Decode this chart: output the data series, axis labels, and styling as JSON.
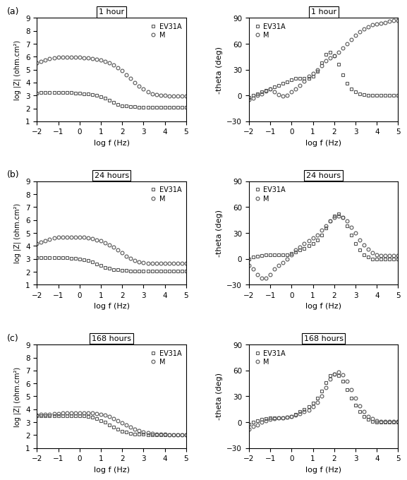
{
  "panels": [
    {
      "label": "1 hour",
      "row_label": "(a)",
      "bode_mag": {
        "EV31A": {
          "x": [
            -2.0,
            -1.8,
            -1.6,
            -1.4,
            -1.2,
            -1.0,
            -0.8,
            -0.6,
            -0.4,
            -0.2,
            0.0,
            0.2,
            0.4,
            0.6,
            0.8,
            1.0,
            1.2,
            1.4,
            1.6,
            1.8,
            2.0,
            2.2,
            2.4,
            2.6,
            2.8,
            3.0,
            3.2,
            3.4,
            3.6,
            3.8,
            4.0,
            4.2,
            4.4,
            4.6,
            4.8,
            5.0
          ],
          "y": [
            3.2,
            3.22,
            3.22,
            3.22,
            3.22,
            3.22,
            3.22,
            3.22,
            3.22,
            3.2,
            3.18,
            3.15,
            3.12,
            3.08,
            3.02,
            2.92,
            2.78,
            2.62,
            2.45,
            2.32,
            2.22,
            2.18,
            2.15,
            2.12,
            2.1,
            2.1,
            2.1,
            2.1,
            2.1,
            2.1,
            2.1,
            2.1,
            2.1,
            2.1,
            2.1,
            2.1
          ]
        },
        "M": {
          "x": [
            -2.0,
            -1.8,
            -1.6,
            -1.4,
            -1.2,
            -1.0,
            -0.8,
            -0.6,
            -0.4,
            -0.2,
            0.0,
            0.2,
            0.4,
            0.6,
            0.8,
            1.0,
            1.2,
            1.4,
            1.6,
            1.8,
            2.0,
            2.2,
            2.4,
            2.6,
            2.8,
            3.0,
            3.2,
            3.4,
            3.6,
            3.8,
            4.0,
            4.2,
            4.4,
            4.6,
            4.8,
            5.0
          ],
          "y": [
            5.55,
            5.65,
            5.75,
            5.85,
            5.92,
            5.95,
            5.97,
            5.97,
            5.97,
            5.97,
            5.95,
            5.93,
            5.9,
            5.87,
            5.82,
            5.75,
            5.65,
            5.52,
            5.35,
            5.15,
            4.9,
            4.6,
            4.3,
            4.0,
            3.72,
            3.48,
            3.28,
            3.15,
            3.06,
            3.02,
            3.0,
            2.98,
            2.97,
            2.97,
            2.97,
            2.97
          ]
        }
      },
      "bode_phase": {
        "EV31A": {
          "x": [
            -2.0,
            -1.8,
            -1.6,
            -1.4,
            -1.2,
            -1.0,
            -0.8,
            -0.6,
            -0.4,
            -0.2,
            0.0,
            0.2,
            0.4,
            0.6,
            0.8,
            1.0,
            1.2,
            1.4,
            1.6,
            1.8,
            2.0,
            2.2,
            2.4,
            2.6,
            2.8,
            3.0,
            3.2,
            3.4,
            3.6,
            3.8,
            4.0,
            4.2,
            4.4,
            4.6,
            4.8,
            5.0
          ],
          "y": [
            -2,
            0,
            2,
            4,
            6,
            8,
            10,
            12,
            14,
            16,
            18,
            20,
            20,
            20,
            20,
            22,
            28,
            38,
            48,
            50,
            46,
            36,
            24,
            14,
            8,
            4,
            2,
            1,
            0,
            0,
            0,
            0,
            0,
            0,
            0,
            0
          ]
        },
        "M": {
          "x": [
            -2.0,
            -1.8,
            -1.6,
            -1.4,
            -1.2,
            -1.0,
            -0.8,
            -0.6,
            -0.4,
            -0.2,
            0.0,
            0.2,
            0.4,
            0.6,
            0.8,
            1.0,
            1.2,
            1.4,
            1.6,
            1.8,
            2.0,
            2.2,
            2.4,
            2.6,
            2.8,
            3.0,
            3.2,
            3.4,
            3.6,
            3.8,
            4.0,
            4.2,
            4.4,
            4.6,
            4.8,
            5.0
          ],
          "y": [
            -5,
            -3,
            0,
            2,
            5,
            8,
            4,
            1,
            -1,
            0,
            4,
            8,
            12,
            17,
            22,
            26,
            30,
            35,
            40,
            44,
            46,
            50,
            55,
            60,
            65,
            70,
            74,
            77,
            80,
            82,
            83,
            84,
            85,
            86,
            87,
            87
          ]
        }
      }
    },
    {
      "label": "24 hours",
      "row_label": "(b)",
      "bode_mag": {
        "EV31A": {
          "x": [
            -2.0,
            -1.8,
            -1.6,
            -1.4,
            -1.2,
            -1.0,
            -0.8,
            -0.6,
            -0.4,
            -0.2,
            0.0,
            0.2,
            0.4,
            0.6,
            0.8,
            1.0,
            1.2,
            1.4,
            1.6,
            1.8,
            2.0,
            2.2,
            2.4,
            2.6,
            2.8,
            3.0,
            3.2,
            3.4,
            3.6,
            3.8,
            4.0,
            4.2,
            4.4,
            4.6,
            4.8,
            5.0
          ],
          "y": [
            3.1,
            3.1,
            3.1,
            3.1,
            3.1,
            3.1,
            3.1,
            3.08,
            3.05,
            3.02,
            2.98,
            2.92,
            2.85,
            2.75,
            2.62,
            2.48,
            2.35,
            2.25,
            2.18,
            2.15,
            2.12,
            2.1,
            2.08,
            2.07,
            2.07,
            2.07,
            2.07,
            2.07,
            2.07,
            2.07,
            2.07,
            2.07,
            2.07,
            2.07,
            2.07,
            2.07
          ]
        },
        "M": {
          "x": [
            -2.0,
            -1.8,
            -1.6,
            -1.4,
            -1.2,
            -1.0,
            -0.8,
            -0.6,
            -0.4,
            -0.2,
            0.0,
            0.2,
            0.4,
            0.6,
            0.8,
            1.0,
            1.2,
            1.4,
            1.6,
            1.8,
            2.0,
            2.2,
            2.4,
            2.6,
            2.8,
            3.0,
            3.2,
            3.4,
            3.6,
            3.8,
            4.0,
            4.2,
            4.4,
            4.6,
            4.8,
            5.0
          ],
          "y": [
            4.2,
            4.3,
            4.4,
            4.5,
            4.6,
            4.65,
            4.68,
            4.7,
            4.7,
            4.7,
            4.68,
            4.65,
            4.6,
            4.55,
            4.48,
            4.38,
            4.25,
            4.1,
            3.9,
            3.68,
            3.45,
            3.22,
            3.02,
            2.88,
            2.78,
            2.72,
            2.68,
            2.65,
            2.63,
            2.63,
            2.63,
            2.63,
            2.63,
            2.63,
            2.63,
            2.63
          ]
        }
      },
      "bode_phase": {
        "EV31A": {
          "x": [
            -2.0,
            -1.8,
            -1.6,
            -1.4,
            -1.2,
            -1.0,
            -0.8,
            -0.6,
            -0.4,
            -0.2,
            0.0,
            0.2,
            0.4,
            0.6,
            0.8,
            1.0,
            1.2,
            1.4,
            1.6,
            1.8,
            2.0,
            2.2,
            2.4,
            2.6,
            2.8,
            3.0,
            3.2,
            3.4,
            3.6,
            3.8,
            4.0,
            4.2,
            4.4,
            4.6,
            4.8,
            5.0
          ],
          "y": [
            0,
            2,
            3,
            4,
            5,
            5,
            5,
            5,
            5,
            5,
            6,
            8,
            10,
            12,
            15,
            18,
            22,
            28,
            36,
            44,
            50,
            52,
            48,
            38,
            28,
            18,
            10,
            5,
            2,
            0,
            0,
            0,
            0,
            0,
            0,
            0
          ]
        },
        "M": {
          "x": [
            -2.0,
            -1.8,
            -1.6,
            -1.4,
            -1.2,
            -1.0,
            -0.8,
            -0.6,
            -0.4,
            -0.2,
            0.0,
            0.2,
            0.4,
            0.6,
            0.8,
            1.0,
            1.2,
            1.4,
            1.6,
            1.8,
            2.0,
            2.2,
            2.4,
            2.6,
            2.8,
            3.0,
            3.2,
            3.4,
            3.6,
            3.8,
            4.0,
            4.2,
            4.4,
            4.6,
            4.8,
            5.0
          ],
          "y": [
            -8,
            -12,
            -18,
            -22,
            -22,
            -18,
            -12,
            -8,
            -4,
            0,
            5,
            10,
            14,
            18,
            21,
            24,
            28,
            33,
            38,
            44,
            48,
            50,
            48,
            44,
            37,
            30,
            22,
            16,
            11,
            7,
            5,
            4,
            4,
            4,
            4,
            4
          ]
        }
      }
    },
    {
      "label": "168 hours",
      "row_label": "(c)",
      "bode_mag": {
        "EV31A": {
          "x": [
            -2.0,
            -1.8,
            -1.6,
            -1.4,
            -1.2,
            -1.0,
            -0.8,
            -0.6,
            -0.4,
            -0.2,
            0.0,
            0.2,
            0.4,
            0.6,
            0.8,
            1.0,
            1.2,
            1.4,
            1.6,
            1.8,
            2.0,
            2.2,
            2.4,
            2.6,
            2.8,
            3.0,
            3.2,
            3.4,
            3.6,
            3.8,
            4.0,
            4.2,
            4.4,
            4.6,
            4.8,
            5.0
          ],
          "y": [
            3.5,
            3.52,
            3.52,
            3.52,
            3.52,
            3.52,
            3.52,
            3.52,
            3.52,
            3.52,
            3.5,
            3.48,
            3.44,
            3.38,
            3.28,
            3.14,
            2.98,
            2.8,
            2.62,
            2.45,
            2.32,
            2.22,
            2.15,
            2.1,
            2.07,
            2.05,
            2.04,
            2.03,
            2.03,
            2.03,
            2.03,
            2.03,
            2.03,
            2.03,
            2.03,
            2.03
          ]
        },
        "M": {
          "x": [
            -2.0,
            -1.8,
            -1.6,
            -1.4,
            -1.2,
            -1.0,
            -0.8,
            -0.6,
            -0.4,
            -0.2,
            0.0,
            0.2,
            0.4,
            0.6,
            0.8,
            1.0,
            1.2,
            1.4,
            1.6,
            1.8,
            2.0,
            2.2,
            2.4,
            2.6,
            2.8,
            3.0,
            3.2,
            3.4,
            3.6,
            3.8,
            4.0,
            4.2,
            4.4,
            4.6,
            4.8,
            5.0
          ],
          "y": [
            3.55,
            3.58,
            3.6,
            3.62,
            3.65,
            3.68,
            3.7,
            3.72,
            3.73,
            3.73,
            3.73,
            3.73,
            3.72,
            3.7,
            3.68,
            3.62,
            3.55,
            3.44,
            3.3,
            3.14,
            2.96,
            2.78,
            2.62,
            2.48,
            2.36,
            2.26,
            2.18,
            2.12,
            2.08,
            2.06,
            2.05,
            2.04,
            2.04,
            2.04,
            2.04,
            2.04
          ]
        }
      },
      "bode_phase": {
        "EV31A": {
          "x": [
            -2.0,
            -1.8,
            -1.6,
            -1.4,
            -1.2,
            -1.0,
            -0.8,
            -0.6,
            -0.4,
            -0.2,
            0.0,
            0.2,
            0.4,
            0.6,
            0.8,
            1.0,
            1.2,
            1.4,
            1.6,
            1.8,
            2.0,
            2.2,
            2.4,
            2.6,
            2.8,
            3.0,
            3.2,
            3.4,
            3.6,
            3.8,
            4.0,
            4.2,
            4.4,
            4.6,
            4.8,
            5.0
          ],
          "y": [
            -2,
            0,
            2,
            3,
            4,
            5,
            5,
            5,
            5,
            6,
            7,
            9,
            12,
            15,
            18,
            22,
            28,
            36,
            46,
            54,
            56,
            54,
            48,
            38,
            28,
            20,
            12,
            7,
            3,
            1,
            0,
            0,
            0,
            0,
            0,
            0
          ]
        },
        "M": {
          "x": [
            -2.0,
            -1.8,
            -1.6,
            -1.4,
            -1.2,
            -1.0,
            -0.8,
            -0.6,
            -0.4,
            -0.2,
            0.0,
            0.2,
            0.4,
            0.6,
            0.8,
            1.0,
            1.2,
            1.4,
            1.6,
            1.8,
            2.0,
            2.2,
            2.4,
            2.6,
            2.8,
            3.0,
            3.2,
            3.4,
            3.6,
            3.8,
            4.0,
            4.2,
            4.4,
            4.6,
            4.8,
            5.0
          ],
          "y": [
            -8,
            -5,
            -3,
            0,
            2,
            3,
            4,
            5,
            5,
            6,
            7,
            8,
            10,
            12,
            14,
            18,
            23,
            30,
            40,
            50,
            56,
            58,
            55,
            48,
            38,
            28,
            19,
            12,
            7,
            4,
            2,
            1,
            1,
            1,
            1,
            1
          ]
        }
      }
    }
  ],
  "mag_ylim": [
    1,
    9
  ],
  "mag_yticks": [
    1,
    2,
    3,
    4,
    5,
    6,
    7,
    8,
    9
  ],
  "phase_ylim": [
    -30,
    90
  ],
  "phase_yticks": [
    -30,
    0,
    30,
    60,
    90
  ],
  "xlim": [
    -2,
    5
  ],
  "xticks": [
    -2,
    -1,
    0,
    1,
    2,
    3,
    4,
    5
  ],
  "xlabel": "log f (Hz)",
  "mag_ylabel": "log |Z| (ohm.cm²)",
  "phase_ylabel": "-theta (deg)",
  "bg_color": "#ffffff",
  "plot_bg": "#ffffff",
  "marker_EV31A": "s",
  "marker_M": "o",
  "markersize": 3.5,
  "linewidth": 0,
  "color": "#555555"
}
